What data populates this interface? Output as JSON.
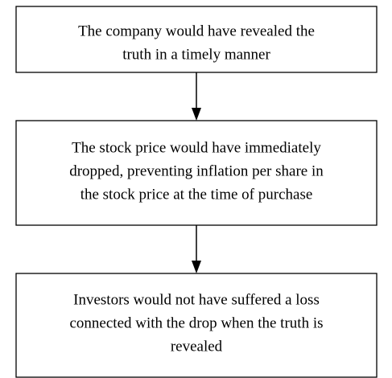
{
  "nodes": [
    {
      "lines": [
        "The company would have revealed the",
        "truth in a timely manner"
      ]
    },
    {
      "lines": [
        "The stock price would have immediately",
        "dropped, preventing inflation per share in",
        "the stock price at the time of purchase"
      ]
    },
    {
      "lines": [
        "Investors would not have suffered a loss",
        "connected with the drop when the truth is",
        "revealed"
      ]
    }
  ]
}
